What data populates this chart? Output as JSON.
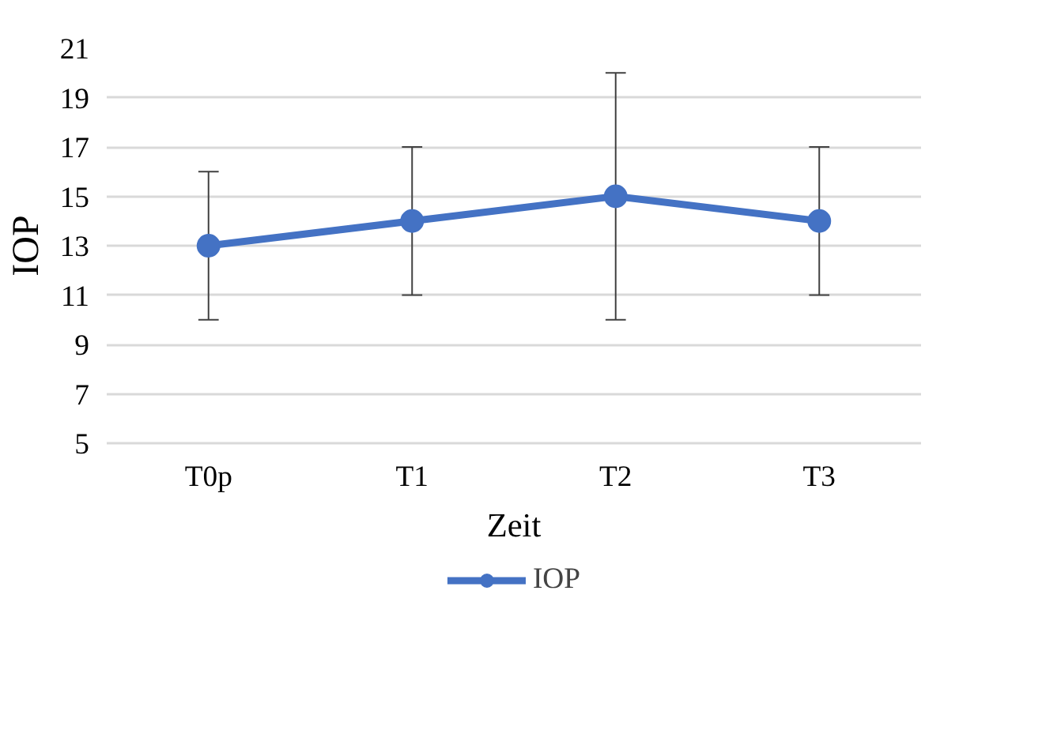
{
  "chart_data": {
    "type": "line",
    "xlabel": "Zeit",
    "ylabel": "IOP",
    "categories": [
      "T0p",
      "T1",
      "T2",
      "T3"
    ],
    "series": [
      {
        "name": "IOP",
        "color": "#4472c4",
        "values": [
          13,
          14,
          15,
          14
        ],
        "errors": [
          [
            10,
            16
          ],
          [
            11,
            17
          ],
          [
            10,
            20
          ],
          [
            11,
            17
          ]
        ]
      }
    ],
    "ylim": [
      5,
      21
    ],
    "yticks": [
      5,
      7,
      9,
      11,
      13,
      15,
      17,
      19,
      21
    ],
    "grid": "y",
    "legend": "bottom",
    "marker": "circle",
    "line_style": "solid"
  }
}
